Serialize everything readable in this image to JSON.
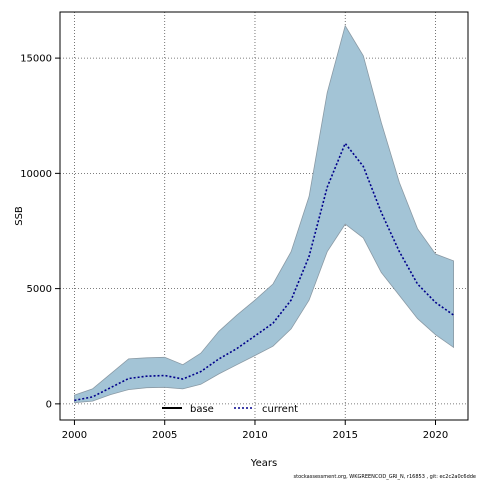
{
  "chart_data": {
    "type": "line",
    "xlabel": "Years",
    "ylabel": "SSB",
    "xlim": [
      1999.2,
      2021.8
    ],
    "ylim": [
      -700,
      17000
    ],
    "xticks": [
      2000,
      2005,
      2010,
      2015,
      2020
    ],
    "yticks": [
      0,
      5000,
      10000,
      15000
    ],
    "grid": true,
    "legend_position": "bottom-center",
    "legend": [
      {
        "name": "base",
        "style": "solid",
        "color": "#000000"
      },
      {
        "name": "current",
        "style": "dotted",
        "color": "#00008b"
      }
    ],
    "x": [
      2000,
      2001,
      2002,
      2003,
      2004,
      2005,
      2006,
      2007,
      2008,
      2009,
      2010,
      2011,
      2012,
      2013,
      2014,
      2015,
      2016,
      2017,
      2018,
      2019,
      2020,
      2021
    ],
    "series": [
      {
        "name": "current",
        "values": [
          150,
          300,
          700,
          1100,
          1200,
          1230,
          1080,
          1400,
          1950,
          2400,
          2950,
          3500,
          4500,
          6400,
          9400,
          11300,
          10300,
          8300,
          6600,
          5200,
          4400,
          3850
        ]
      }
    ],
    "band": {
      "upper": [
        380,
        650,
        1300,
        1950,
        2000,
        2020,
        1700,
        2200,
        3150,
        3850,
        4500,
        5200,
        6600,
        9000,
        13500,
        16400,
        15100,
        12200,
        9600,
        7600,
        6500,
        6200
      ],
      "lower": [
        50,
        120,
        400,
        620,
        700,
        720,
        650,
        850,
        1300,
        1700,
        2100,
        2500,
        3250,
        4500,
        6600,
        7800,
        7200,
        5700,
        4700,
        3700,
        3000,
        2450
      ],
      "fill": "#a3c4d6",
      "stroke": "#8a9aa5"
    },
    "footer": "stockassessment.org, WKGREENCOD_GRI_N, r16853 , git: ec2c2a0c6dde"
  }
}
